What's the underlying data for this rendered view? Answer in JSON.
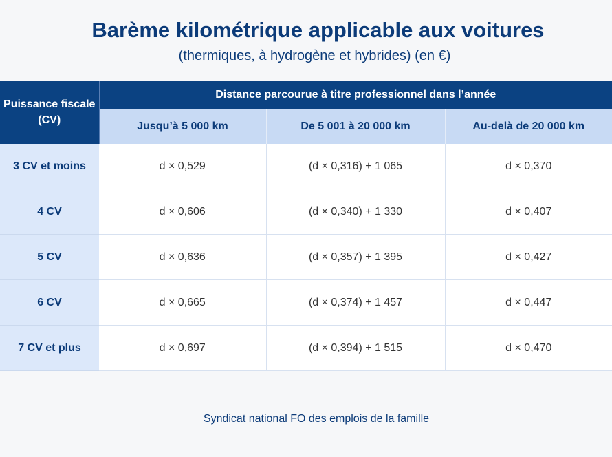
{
  "title": "Barème kilométrique applicable aux voitures",
  "subtitle": "(thermiques, à hydrogène et hybrides) (en €)",
  "table": {
    "corner": "Puissance fiscale (CV)",
    "group_header": "Distance parcourue à titre professionnel dans l’année",
    "columns": [
      "Jusqu’à 5 000 km",
      "De 5 001 à 20 000 km",
      "Au-delà de 20 000 km"
    ],
    "rows": [
      {
        "label": "3 CV et moins",
        "values": [
          "d × 0,529",
          "(d × 0,316) + 1 065",
          "d × 0,370"
        ]
      },
      {
        "label": "4 CV",
        "values": [
          "d × 0,606",
          "(d × 0,340) + 1 330",
          "d × 0,407"
        ]
      },
      {
        "label": "5 CV",
        "values": [
          "d × 0,636",
          "(d × 0,357) + 1 395",
          "d × 0,427"
        ]
      },
      {
        "label": "6 CV",
        "values": [
          "d × 0,665",
          "(d × 0,374) + 1 457",
          "d × 0,447"
        ]
      },
      {
        "label": "7 CV et plus",
        "values": [
          "d × 0,697",
          "(d × 0,394) + 1 515",
          "d × 0,470"
        ]
      }
    ]
  },
  "footer": "Syndicat national FO des emplois de la famille",
  "colors": {
    "header": "#0b4282",
    "subheader": "#c8daf4",
    "text": "#0c3b79"
  }
}
